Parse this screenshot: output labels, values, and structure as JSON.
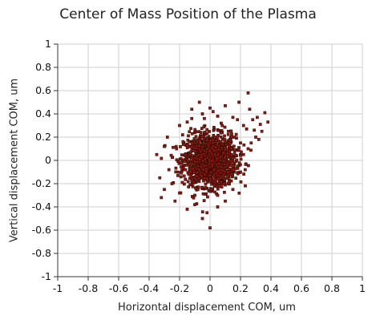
{
  "chart_data": {
    "type": "scatter",
    "title": "Center of Mass Position of the Plasma",
    "xlabel": "Horizontal displacement COM, um",
    "ylabel": "Vertical displacement COM, um",
    "xlim": [
      -1,
      1
    ],
    "ylim": [
      -1,
      1
    ],
    "xticks": [
      "-1",
      "-0.8",
      "-0.6",
      "-0.4",
      "-0.2",
      "0",
      "0.2",
      "0.4",
      "0.6",
      "0.8",
      "1"
    ],
    "yticks": [
      "-1",
      "-0.8",
      "-0.6",
      "-0.4",
      "-0.2",
      "0",
      "0.2",
      "0.4",
      "0.6",
      "0.8",
      "1"
    ],
    "grid": true,
    "legend": "none",
    "marker_color": "#8B1A10",
    "marker_edge": "#2a0a05",
    "points": [
      [
        0.25,
        0.58
      ],
      [
        0.36,
        0.41
      ],
      [
        0.31,
        0.37
      ],
      [
        0.28,
        0.35
      ],
      [
        0.33,
        0.31
      ],
      [
        0.26,
        0.44
      ],
      [
        0.19,
        0.5
      ],
      [
        0.1,
        0.47
      ],
      [
        0.0,
        0.45
      ],
      [
        -0.07,
        0.5
      ],
      [
        -0.12,
        0.44
      ],
      [
        -0.05,
        0.4
      ],
      [
        0.05,
        0.38
      ],
      [
        0.15,
        0.37
      ],
      [
        0.22,
        0.3
      ],
      [
        0.38,
        0.33
      ],
      [
        0.34,
        0.25
      ],
      [
        0.3,
        0.2
      ],
      [
        0.27,
        0.15
      ],
      [
        0.24,
        0.27
      ],
      [
        -0.28,
        0.2
      ],
      [
        -0.3,
        0.12
      ],
      [
        -0.35,
        0.05
      ],
      [
        -0.33,
        -0.15
      ],
      [
        -0.3,
        -0.25
      ],
      [
        -0.25,
        -0.2
      ],
      [
        -0.23,
        -0.35
      ],
      [
        -0.15,
        -0.42
      ],
      [
        -0.1,
        -0.38
      ],
      [
        -0.02,
        -0.45
      ],
      [
        0.05,
        -0.4
      ],
      [
        0.1,
        -0.35
      ],
      [
        0.0,
        -0.58
      ],
      [
        -0.1,
        -0.3
      ],
      [
        0.15,
        -0.25
      ],
      [
        0.2,
        -0.1
      ],
      [
        0.22,
        0.05
      ],
      [
        0.2,
        0.15
      ],
      [
        -0.2,
        0.3
      ],
      [
        -0.15,
        0.33
      ],
      [
        0.08,
        0.3
      ],
      [
        0.12,
        0.25
      ],
      [
        0.05,
        -0.3
      ],
      [
        -0.05,
        -0.5
      ],
      [
        0.02,
        0.42
      ],
      [
        -0.18,
        0.22
      ],
      [
        0.16,
        0.2
      ],
      [
        0.25,
        0.1
      ],
      [
        -0.27,
        -0.08
      ],
      [
        -0.22,
        0.1
      ],
      [
        -0.12,
        0.36
      ],
      [
        0.18,
        0.35
      ],
      [
        0.29,
        0.26
      ],
      [
        0.32,
        0.18
      ],
      [
        -0.32,
        -0.32
      ],
      [
        -0.2,
        -0.28
      ],
      [
        0.12,
        -0.2
      ],
      [
        -0.08,
        -0.25
      ],
      [
        0.07,
        -0.15
      ],
      [
        0.14,
        0.1
      ],
      [
        -0.14,
        -0.12
      ],
      [
        0.03,
        0.2
      ],
      [
        -0.04,
        0.15
      ],
      [
        -0.16,
        0.05
      ],
      [
        0.18,
        -0.05
      ]
    ],
    "cluster": {
      "count": 1400,
      "center": [
        0.0,
        0.0
      ],
      "sd": [
        0.085,
        0.11
      ]
    }
  }
}
